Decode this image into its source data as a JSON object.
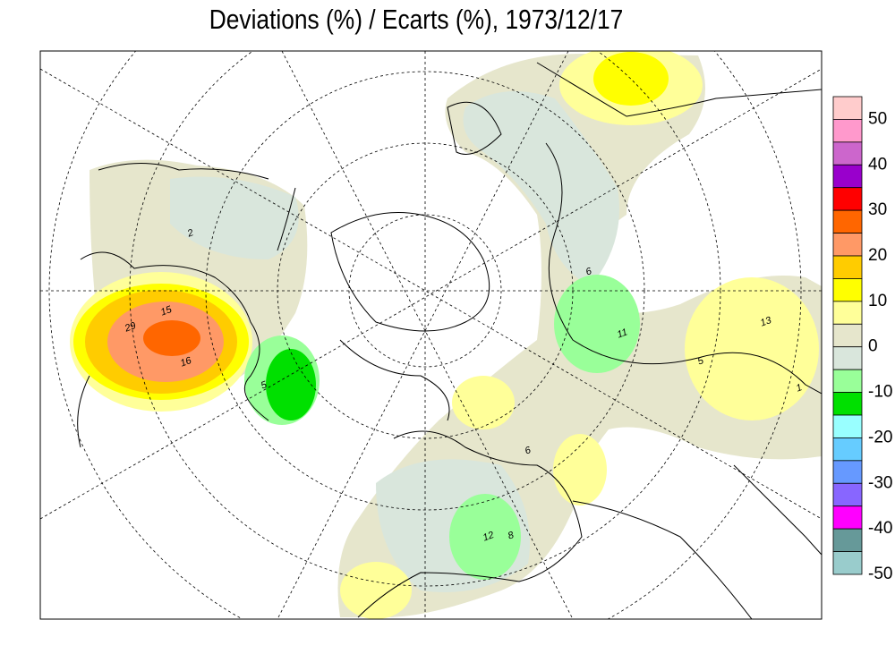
{
  "title": "Deviations (%) / Ecarts (%), 1973/12/17",
  "legend": {
    "colors": [
      "#ffcccc",
      "#ff99cc",
      "#cc66cc",
      "#9900cc",
      "#ff0000",
      "#ff6600",
      "#ff9966",
      "#ffcc00",
      "#ffff00",
      "#ffff99",
      "#e6e6cc",
      "#d9e6dc",
      "#99ff99",
      "#00e000",
      "#99ffff",
      "#66ccff",
      "#6699ff",
      "#8866ff",
      "#ff00ff",
      "#669999",
      "#99cccc"
    ],
    "labels": [
      50,
      40,
      30,
      20,
      10,
      0,
      -10,
      -20,
      -30,
      -40,
      -50
    ]
  },
  "stations": [
    "2",
    "15",
    "29",
    "16",
    "5",
    "6",
    "11",
    "13",
    "5",
    "1",
    "12",
    "8",
    "6"
  ]
}
